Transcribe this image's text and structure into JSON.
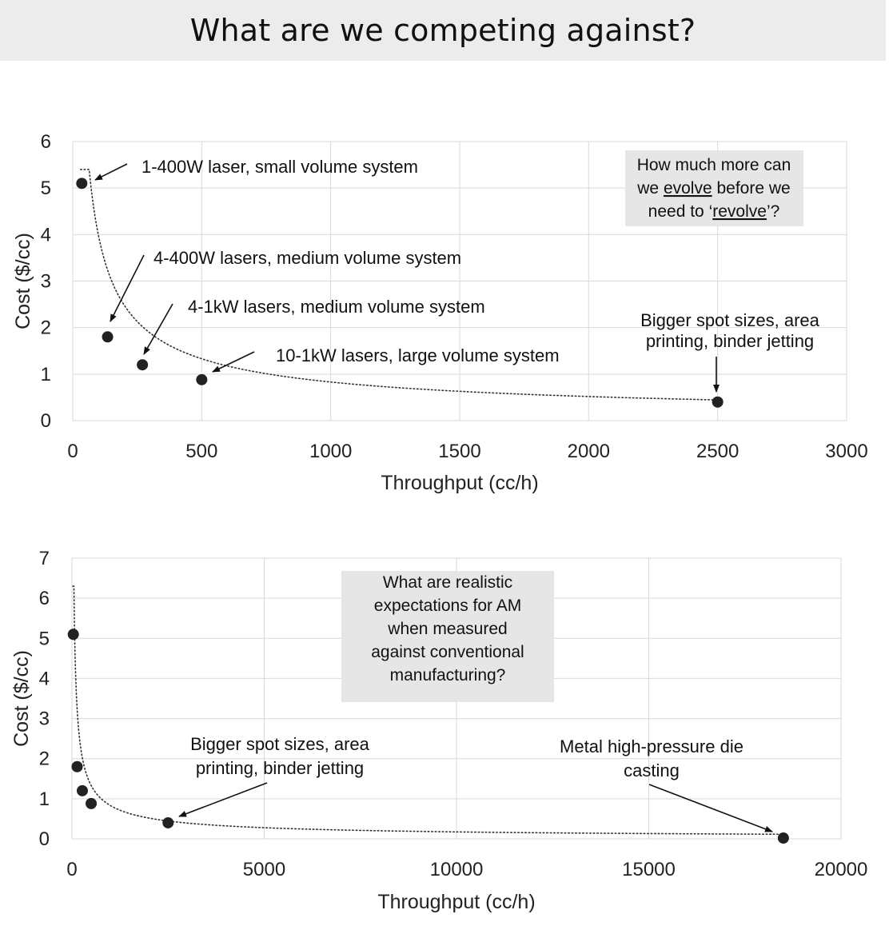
{
  "page_title": "What are we competing against?",
  "chart_data": [
    {
      "type": "scatter",
      "xlabel": "Throughput (cc/h)",
      "ylabel": "Cost ($/cc)",
      "xlim": [
        0,
        3000
      ],
      "ylim": [
        0,
        6
      ],
      "xticks": [
        0,
        500,
        1000,
        1500,
        2000,
        2500,
        3000
      ],
      "yticks": [
        0,
        1,
        2,
        3,
        4,
        5,
        6
      ],
      "grid": true,
      "trendline": "dotted power fit",
      "marker_color": "#222222",
      "series": [
        {
          "points": [
            {
              "x": 35,
              "y": 5.1
            },
            {
              "x": 135,
              "y": 1.8
            },
            {
              "x": 270,
              "y": 1.2
            },
            {
              "x": 500,
              "y": 0.88
            },
            {
              "x": 2500,
              "y": 0.4
            }
          ]
        }
      ],
      "annotations": [
        {
          "text": [
            "1-400W laser, small volume system"
          ]
        },
        {
          "text": [
            "4-400W lasers, medium volume system"
          ]
        },
        {
          "text": [
            "4-1kW lasers, medium volume system"
          ]
        },
        {
          "text": [
            "10-1kW lasers, large volume system"
          ]
        },
        {
          "text": [
            "Bigger spot sizes, area",
            "printing, binder jetting"
          ]
        }
      ],
      "callout": {
        "lines": [
          {
            "parts": [
              "How much more can"
            ]
          },
          {
            "parts": [
              "we ",
              "evolve",
              " before we"
            ]
          },
          {
            "parts": [
              "need to ‘",
              "revolve",
              "’?"
            ]
          }
        ]
      }
    },
    {
      "type": "scatter",
      "xlabel": "Throughput (cc/h)",
      "ylabel": "Cost ($/cc)",
      "xlim": [
        0,
        20000
      ],
      "ylim": [
        0,
        7
      ],
      "xticks": [
        0,
        5000,
        10000,
        15000,
        20000
      ],
      "yticks": [
        0,
        1,
        2,
        3,
        4,
        5,
        6,
        7
      ],
      "grid": true,
      "trendline": "dotted power fit",
      "marker_color": "#222222",
      "series": [
        {
          "points": [
            {
              "x": 35,
              "y": 5.1
            },
            {
              "x": 135,
              "y": 1.8
            },
            {
              "x": 270,
              "y": 1.2
            },
            {
              "x": 500,
              "y": 0.88
            },
            {
              "x": 2500,
              "y": 0.4
            },
            {
              "x": 18500,
              "y": 0.02
            }
          ]
        }
      ],
      "annotations": [
        {
          "text": [
            "Bigger spot sizes, area",
            "printing, binder jetting"
          ]
        },
        {
          "text": [
            "Metal high-pressure die",
            "casting"
          ]
        }
      ],
      "callout": {
        "lines": [
          {
            "parts": [
              "What are realistic"
            ]
          },
          {
            "parts": [
              "expectations for AM"
            ]
          },
          {
            "parts": [
              "when measured"
            ]
          },
          {
            "parts": [
              "against conventional"
            ]
          },
          {
            "parts": [
              "manufacturing?"
            ]
          }
        ]
      }
    }
  ]
}
